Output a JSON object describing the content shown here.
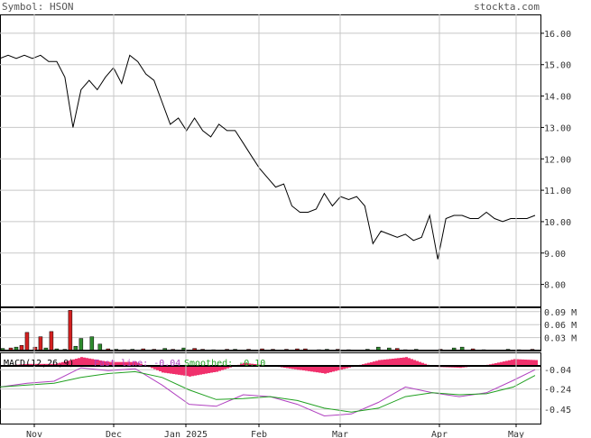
{
  "header": {
    "symbol_label": "Symbol: HSON",
    "site": "stockta.com"
  },
  "colors": {
    "background": "#ffffff",
    "grid": "#c8c8c8",
    "price_line": "#000000",
    "volume_up": "#2e8b2e",
    "volume_down": "#d42020",
    "macd_histogram": "#f0306c",
    "macd_line": "#b040c0",
    "signal_line": "#20a020",
    "macd_label": "#000000"
  },
  "chart_data": [
    {
      "type": "line",
      "name": "price",
      "y_ticks": [
        "16.00",
        "15.00",
        "14.00",
        "13.00",
        "12.00",
        "11.00",
        "10.00",
        "9.00",
        "8.00"
      ],
      "ylim": [
        7.3,
        16.6
      ],
      "x_ticks": [
        "Nov",
        "Dec",
        "Jan 2025",
        "Feb",
        "Mar",
        "Apr",
        "May"
      ],
      "x": [
        0,
        3,
        6,
        9,
        12,
        15,
        18,
        21,
        24,
        27,
        30,
        33,
        36,
        39,
        42,
        45,
        48,
        51,
        54,
        57,
        60,
        63,
        66,
        69,
        72,
        75,
        78,
        81,
        84,
        87,
        90,
        93,
        96,
        99,
        102,
        105,
        108,
        111,
        114,
        117,
        120,
        123,
        126,
        129,
        132,
        135,
        138,
        141,
        144,
        147,
        150,
        153,
        156,
        159,
        162,
        165,
        168,
        171,
        174,
        177,
        180,
        183,
        186,
        189,
        192,
        195,
        198
      ],
      "values": [
        15.2,
        15.3,
        15.2,
        15.3,
        15.2,
        15.3,
        15.1,
        15.1,
        14.6,
        13.0,
        14.2,
        14.5,
        14.2,
        14.6,
        14.9,
        14.4,
        15.3,
        15.1,
        14.7,
        14.5,
        13.8,
        13.1,
        13.3,
        12.9,
        13.3,
        12.9,
        12.7,
        13.1,
        12.9,
        12.9,
        12.5,
        12.1,
        11.7,
        11.4,
        11.1,
        11.2,
        10.5,
        10.3,
        10.3,
        10.4,
        10.9,
        10.5,
        10.8,
        10.7,
        10.8,
        10.5,
        9.3,
        9.7,
        9.6,
        9.5,
        9.6,
        9.4,
        9.5,
        10.2,
        8.8,
        10.1,
        10.2,
        10.2,
        10.1,
        10.1,
        10.3,
        10.1,
        10.0,
        10.1,
        10.1,
        10.1,
        10.2
      ]
    },
    {
      "type": "bar",
      "name": "volume",
      "y_ticks": [
        "0.09 M",
        "0.06 M",
        "0.03 M"
      ],
      "ylim": [
        0,
        0.1
      ],
      "x": [
        1,
        4,
        6,
        8,
        10,
        13,
        15,
        17,
        19,
        21,
        24,
        26,
        28,
        30,
        34,
        37,
        40,
        43,
        46,
        49,
        53,
        57,
        61,
        64,
        68,
        72,
        75,
        79,
        84,
        87,
        92,
        97,
        101,
        106,
        110,
        113,
        118,
        121,
        125,
        129,
        136,
        140,
        144,
        147,
        150,
        154,
        163,
        168,
        171,
        175,
        179,
        188,
        192,
        197
      ],
      "values": [
        0.005,
        0.006,
        0.008,
        0.012,
        0.042,
        0.008,
        0.032,
        0.006,
        0.044,
        0.004,
        0.003,
        0.093,
        0.01,
        0.028,
        0.032,
        0.015,
        0.004,
        0.003,
        0.002,
        0.003,
        0.004,
        0.003,
        0.005,
        0.003,
        0.006,
        0.005,
        0.003,
        0.002,
        0.003,
        0.003,
        0.003,
        0.004,
        0.003,
        0.003,
        0.004,
        0.004,
        0.002,
        0.003,
        0.003,
        0.002,
        0.003,
        0.008,
        0.006,
        0.005,
        0.002,
        0.003,
        0.003,
        0.006,
        0.008,
        0.004,
        0.002,
        0.003,
        0.002,
        0.003
      ],
      "direction": [
        "up",
        "down",
        "up",
        "down",
        "down",
        "down",
        "down",
        "up",
        "down",
        "up",
        "up",
        "down",
        "up",
        "up",
        "up",
        "up",
        "down",
        "up",
        "down",
        "up",
        "down",
        "down",
        "up",
        "down",
        "up",
        "down",
        "down",
        "up",
        "down",
        "up",
        "down",
        "down",
        "down",
        "down",
        "down",
        "down",
        "down",
        "up",
        "down",
        "up",
        "up",
        "up",
        "up",
        "down",
        "up",
        "up",
        "down",
        "up",
        "up",
        "down",
        "down",
        "up",
        "up",
        "down"
      ]
    },
    {
      "type": "line",
      "name": "macd",
      "legend": {
        "macd": "MACD(12,26,9)",
        "fast_line": "Fast line: -0.04",
        "smoothed": "Smoothed: -0.10"
      },
      "y_ticks": [
        "-0.04",
        "-0.24",
        "-0.45"
      ],
      "ylim": [
        -0.6,
        0.14
      ],
      "x": [
        0,
        10,
        20,
        30,
        40,
        50,
        60,
        70,
        80,
        90,
        100,
        110,
        120,
        130,
        140,
        150,
        160,
        170,
        180,
        190,
        198
      ],
      "fast_line": [
        -0.22,
        -0.18,
        -0.16,
        -0.02,
        -0.05,
        -0.03,
        -0.2,
        -0.4,
        -0.42,
        -0.3,
        -0.32,
        -0.4,
        -0.52,
        -0.5,
        -0.38,
        -0.22,
        -0.28,
        -0.32,
        -0.28,
        -0.15,
        -0.04
      ],
      "smoothed": [
        -0.22,
        -0.2,
        -0.18,
        -0.12,
        -0.08,
        -0.06,
        -0.12,
        -0.25,
        -0.35,
        -0.34,
        -0.32,
        -0.36,
        -0.44,
        -0.48,
        -0.44,
        -0.32,
        -0.28,
        -0.3,
        -0.29,
        -0.22,
        -0.1
      ],
      "histogram": [
        0.0,
        0.02,
        0.02,
        0.09,
        0.04,
        0.04,
        -0.07,
        -0.11,
        -0.06,
        0.03,
        0.0,
        -0.04,
        -0.08,
        -0.01,
        0.06,
        0.09,
        -0.01,
        -0.02,
        0.01,
        0.07,
        0.06
      ]
    }
  ]
}
